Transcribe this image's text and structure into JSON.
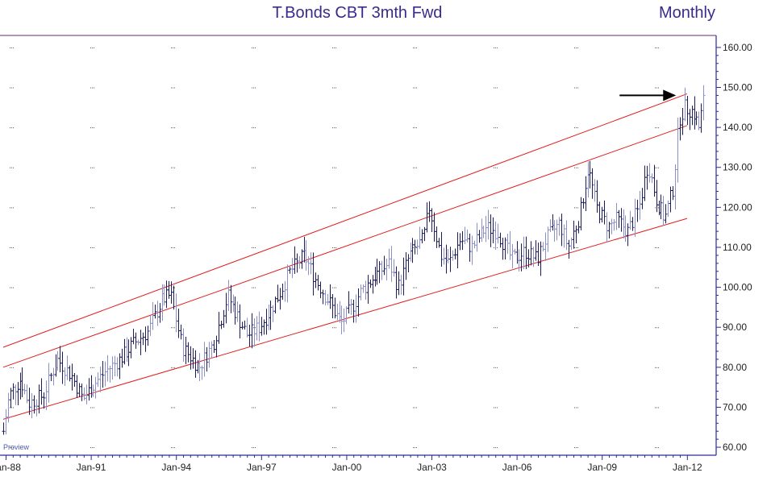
{
  "chart_data": {
    "type": "ohlc-bar",
    "title": "T.Bonds CBT 3mth Fwd",
    "period": "Monthly",
    "watermark": "Proview",
    "ylim": [
      58,
      163
    ],
    "y_ticks": [
      "160.00",
      "150.00",
      "140.00",
      "130.00",
      "120.00",
      "110.00",
      "100.00",
      "90.00",
      "80.00",
      "70.00",
      "60.00"
    ],
    "y_tick_values": [
      160,
      150,
      140,
      130,
      120,
      110,
      100,
      90,
      80,
      70,
      60
    ],
    "x_range": [
      1987.9,
      2012.9
    ],
    "x_ticks": [
      "Jan-88",
      "Jan-91",
      "Jan-94",
      "Jan-97",
      "Jan-00",
      "Jan-03",
      "Jan-06",
      "Jan-09",
      "Jan-12"
    ],
    "x_tick_values": [
      1988,
      1991,
      1994,
      1997,
      2000,
      2003,
      2006,
      2009,
      2012
    ],
    "price_anchors": [
      [
        1987.9,
        64
      ],
      [
        1988.1,
        73
      ],
      [
        1988.5,
        77
      ],
      [
        1988.8,
        71
      ],
      [
        1989.3,
        73
      ],
      [
        1989.8,
        82
      ],
      [
        1990.3,
        78
      ],
      [
        1990.7,
        72
      ],
      [
        1991.0,
        75
      ],
      [
        1991.5,
        79
      ],
      [
        1992.0,
        82
      ],
      [
        1992.5,
        86
      ],
      [
        1993.0,
        89
      ],
      [
        1993.5,
        97
      ],
      [
        1993.8,
        98
      ],
      [
        1994.2,
        85
      ],
      [
        1994.8,
        80
      ],
      [
        1995.3,
        86
      ],
      [
        1995.8,
        98
      ],
      [
        1996.2,
        92
      ],
      [
        1996.5,
        88
      ],
      [
        1996.9,
        90
      ],
      [
        1997.2,
        93
      ],
      [
        1997.6,
        98
      ],
      [
        1998.0,
        104
      ],
      [
        1998.5,
        108
      ],
      [
        1998.9,
        102
      ],
      [
        1999.4,
        96
      ],
      [
        1999.8,
        91
      ],
      [
        2000.1,
        94
      ],
      [
        2000.5,
        99
      ],
      [
        2001.0,
        103
      ],
      [
        2001.5,
        106
      ],
      [
        2001.8,
        100
      ],
      [
        2002.2,
        108
      ],
      [
        2002.7,
        112
      ],
      [
        2002.9,
        120
      ],
      [
        2003.3,
        108
      ],
      [
        2003.6,
        106
      ],
      [
        2004.0,
        112
      ],
      [
        2004.4,
        110
      ],
      [
        2004.9,
        115
      ],
      [
        2005.3,
        114
      ],
      [
        2005.8,
        107
      ],
      [
        2006.3,
        109
      ],
      [
        2006.7,
        107
      ],
      [
        2007.0,
        112
      ],
      [
        2007.5,
        116
      ],
      [
        2007.8,
        110
      ],
      [
        2008.2,
        118
      ],
      [
        2008.5,
        130
      ],
      [
        2008.8,
        120
      ],
      [
        2009.2,
        115
      ],
      [
        2009.5,
        117
      ],
      [
        2009.9,
        114
      ],
      [
        2010.3,
        120
      ],
      [
        2010.6,
        131
      ],
      [
        2010.9,
        122
      ],
      [
        2011.2,
        117
      ],
      [
        2011.5,
        125
      ],
      [
        2011.7,
        142
      ],
      [
        2011.9,
        145
      ],
      [
        2012.2,
        144
      ],
      [
        2012.4,
        140
      ],
      [
        2012.6,
        148
      ]
    ],
    "trend_lines": [
      {
        "name": "channel-upper",
        "color": "#e02020",
        "from": [
          1987.9,
          85
        ],
        "to": [
          2012.6,
          150
        ]
      },
      {
        "name": "channel-middle",
        "color": "#e02020",
        "from": [
          1987.9,
          80
        ],
        "to": [
          2012.6,
          142
        ]
      },
      {
        "name": "channel-lower",
        "color": "#e02020",
        "from": [
          1987.9,
          67
        ],
        "to": [
          2013.8,
          121
        ]
      }
    ],
    "annotation": {
      "type": "arrow",
      "target": [
        2011.6,
        148
      ],
      "color": "#000000"
    },
    "colors": {
      "bars_dark": "#1c1c5a",
      "bars_light": "#8c90c8",
      "frame": "#6a2a6a",
      "axis": "#2a2a9a",
      "title": "#3a2a8c"
    },
    "grid": "dotted"
  }
}
